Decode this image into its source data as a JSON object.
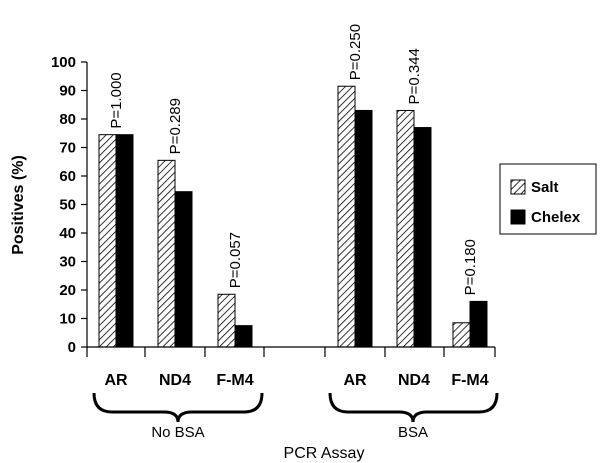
{
  "chart_data": {
    "type": "bar",
    "xlabel": "PCR Assay",
    "ylabel": "Positives (%)",
    "ylim": [
      0,
      100
    ],
    "yticks": [
      0,
      10,
      20,
      30,
      40,
      50,
      60,
      70,
      80,
      90,
      100
    ],
    "groups": [
      {
        "name": "No BSA",
        "categories": [
          "AR",
          "ND4",
          "F-M4"
        ],
        "pvalues": [
          "P=1.000",
          "P=0.289",
          "P=0.057"
        ],
        "series": [
          {
            "name": "Salt",
            "values": [
              74.5,
              65.5,
              18.5
            ]
          },
          {
            "name": "Chelex",
            "values": [
              74.5,
              54.5,
              7.5
            ]
          }
        ]
      },
      {
        "name": "BSA",
        "categories": [
          "AR",
          "ND4",
          "F-M4"
        ],
        "pvalues": [
          "P=0.250",
          "P=0.344",
          "P=0.180"
        ],
        "series": [
          {
            "name": "Salt",
            "values": [
              91.5,
              83,
              8.5
            ]
          },
          {
            "name": "Chelex",
            "values": [
              83,
              77,
              16
            ]
          }
        ]
      }
    ],
    "legend": [
      {
        "name": "Salt",
        "pattern": "hatched"
      },
      {
        "name": "Chelex",
        "pattern": "solid"
      }
    ],
    "legend_position": "right",
    "colors": {
      "chelex": "#000000",
      "salt_hatch": "#000000",
      "background": "#ffffff"
    }
  }
}
